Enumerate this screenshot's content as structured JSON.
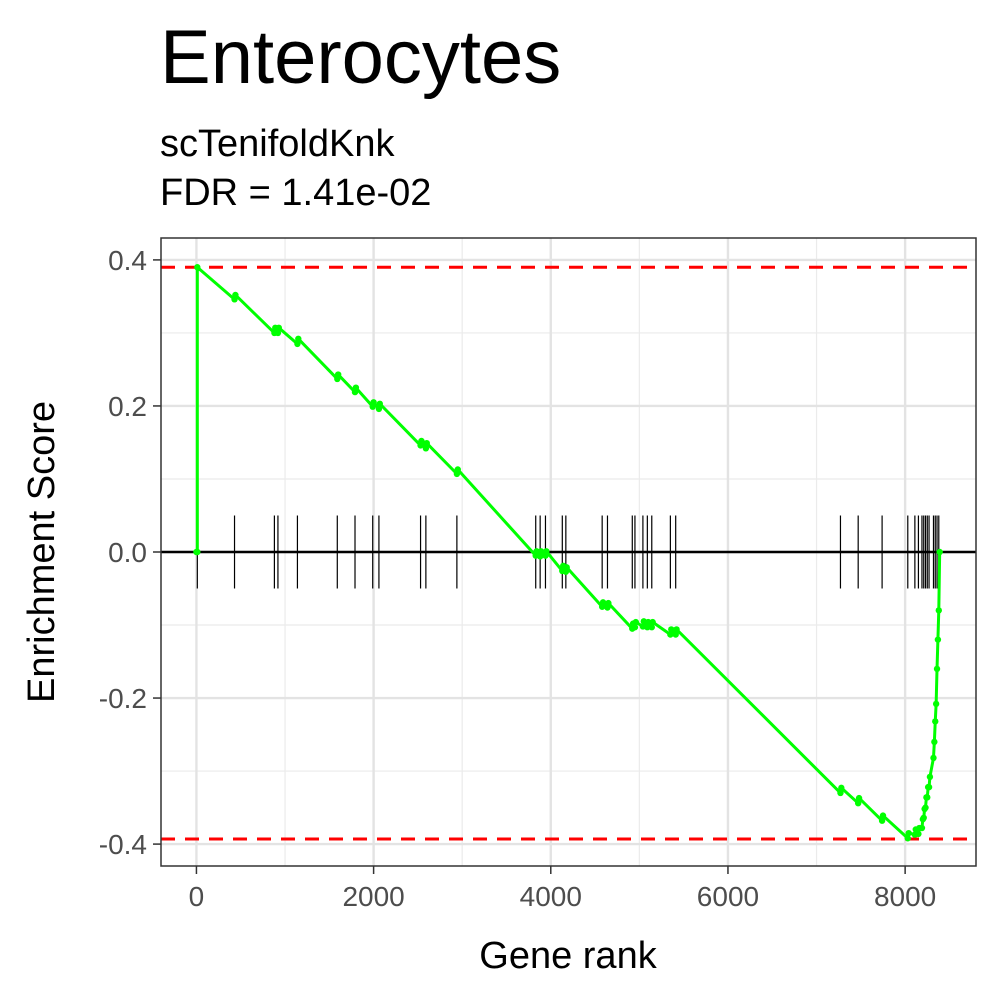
{
  "chart_data": {
    "type": "line",
    "title": "Enterocytes",
    "subtitle_line1": "scTenifoldKnk",
    "subtitle_line2": "FDR = 1.41e-02",
    "xlabel": "Gene rank",
    "ylabel": "Enrichment Score",
    "xlim": [
      -400,
      8800
    ],
    "ylim": [
      -0.43,
      0.43
    ],
    "x_ticks": [
      0,
      2000,
      4000,
      6000,
      8000
    ],
    "x_tick_labels": [
      "0",
      "2000",
      "4000",
      "6000",
      "8000"
    ],
    "y_ticks": [
      0.4,
      0.2,
      0.0,
      -0.2,
      -0.4
    ],
    "y_tick_labels": [
      "0.4",
      "0.2",
      "0.0",
      "-0.2",
      "-0.4"
    ],
    "grid": true,
    "max_es": 0.39,
    "min_es": -0.393,
    "hit_ranks": [
      10,
      430,
      880,
      920,
      1140,
      1590,
      1790,
      1990,
      2060,
      2530,
      2590,
      2940,
      3830,
      3880,
      3940,
      4130,
      4170,
      4580,
      4640,
      4920,
      4950,
      5040,
      5090,
      5140,
      5350,
      5410,
      7270,
      7470,
      7740,
      8030,
      8110,
      8150,
      8190,
      8210,
      8230,
      8250,
      8270,
      8320,
      8340,
      8360,
      8380
    ],
    "series": [
      {
        "color": "#00ff00",
        "x": [
          0,
          10,
          10,
          430,
          440,
          880,
          890,
          920,
          930,
          1140,
          1150,
          1590,
          1600,
          1790,
          1800,
          1990,
          2000,
          2060,
          2070,
          2530,
          2540,
          2590,
          2600,
          2940,
          2950,
          3830,
          3840,
          3880,
          3890,
          3940,
          3950,
          4130,
          4140,
          4170,
          4180,
          4580,
          4590,
          4640,
          4650,
          4920,
          4930,
          4950,
          4960,
          5040,
          5050,
          5090,
          5100,
          5140,
          5150,
          5350,
          5360,
          5410,
          5420,
          7270,
          7280,
          7470,
          7480,
          7740,
          7750,
          8030,
          8040,
          8110,
          8120,
          8150,
          8160,
          8190,
          8200,
          8210,
          8220,
          8230,
          8240,
          8250,
          8260,
          8270,
          8280,
          8320,
          8330,
          8340,
          8350,
          8360,
          8370,
          8380,
          8390
        ],
        "y": [
          0.0,
          0.0,
          0.39,
          0.346,
          0.352,
          0.3,
          0.307,
          0.3,
          0.307,
          0.285,
          0.292,
          0.237,
          0.243,
          0.219,
          0.225,
          0.199,
          0.205,
          0.196,
          0.203,
          0.146,
          0.152,
          0.142,
          0.149,
          0.107,
          0.113,
          -0.005,
          0.001,
          -0.006,
          0.001,
          -0.005,
          0.001,
          -0.026,
          -0.019,
          -0.027,
          -0.021,
          -0.075,
          -0.069,
          -0.076,
          -0.07,
          -0.105,
          -0.098,
          -0.103,
          -0.096,
          -0.102,
          -0.095,
          -0.103,
          -0.096,
          -0.103,
          -0.096,
          -0.113,
          -0.106,
          -0.113,
          -0.106,
          -0.33,
          -0.323,
          -0.344,
          -0.337,
          -0.368,
          -0.361,
          -0.392,
          -0.385,
          -0.387,
          -0.38,
          -0.386,
          -0.378,
          -0.378,
          -0.366,
          -0.364,
          -0.352,
          -0.35,
          -0.336,
          -0.336,
          -0.322,
          -0.322,
          -0.308,
          -0.282,
          -0.26,
          -0.232,
          -0.208,
          -0.16,
          -0.12,
          -0.08,
          0.0
        ]
      }
    ]
  }
}
